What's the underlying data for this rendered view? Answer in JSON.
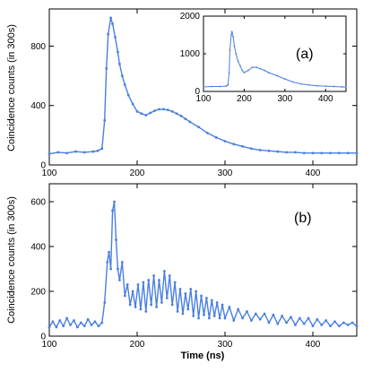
{
  "colors": {
    "series": "#4a7fe0",
    "axis": "#000000",
    "background": "#ffffff"
  },
  "xlabel": "Time (ns)",
  "chart_data": [
    {
      "type": "line",
      "panel_label": "(a)",
      "ylabel": "Coincidence counts (in 300s)",
      "xlim": [
        100,
        450
      ],
      "ylim": [
        0,
        1050
      ],
      "xticks": [
        100,
        200,
        300,
        400
      ],
      "yticks": [
        0,
        400,
        800
      ],
      "series": [
        {
          "x": [
            100,
            110,
            120,
            130,
            140,
            150,
            155,
            160,
            163,
            165,
            167,
            170,
            172,
            175,
            178,
            180,
            183,
            186,
            190,
            195,
            200,
            205,
            210,
            215,
            220,
            225,
            230,
            235,
            240,
            245,
            250,
            255,
            260,
            270,
            280,
            290,
            300,
            310,
            320,
            330,
            340,
            350,
            360,
            370,
            380,
            390,
            400,
            410,
            420,
            430,
            440,
            450
          ],
          "y": [
            75,
            85,
            80,
            90,
            85,
            90,
            95,
            110,
            300,
            650,
            880,
            990,
            950,
            860,
            760,
            680,
            600,
            540,
            470,
            410,
            360,
            345,
            335,
            350,
            365,
            375,
            375,
            370,
            360,
            345,
            330,
            310,
            290,
            255,
            215,
            185,
            160,
            140,
            125,
            110,
            100,
            95,
            90,
            85,
            85,
            80,
            80,
            80,
            80,
            80,
            80,
            80
          ]
        }
      ],
      "inset": {
        "type": "line",
        "xlim": [
          100,
          450
        ],
        "ylim": [
          0,
          2000
        ],
        "xticks": [
          100,
          200,
          300,
          400
        ],
        "yticks": [
          0,
          1000,
          2000
        ],
        "series": [
          {
            "x": [
              100,
              120,
              140,
              155,
              160,
              163,
              165,
              168,
              170,
              173,
              176,
              180,
              185,
              190,
              195,
              200,
              210,
              220,
              230,
              240,
              250,
              260,
              280,
              300,
              320,
              340,
              360,
              380,
              400,
              420,
              440,
              450
            ],
            "y": [
              120,
              130,
              130,
              140,
              170,
              500,
              1100,
              1500,
              1580,
              1450,
              1200,
              1000,
              800,
              680,
              560,
              500,
              560,
              640,
              640,
              600,
              560,
              500,
              420,
              330,
              250,
              200,
              170,
              150,
              140,
              130,
              120,
              120
            ]
          }
        ]
      }
    },
    {
      "type": "line",
      "panel_label": "(b)",
      "ylabel": "Coincidence counts (in 300s)",
      "xlim": [
        100,
        450
      ],
      "ylim": [
        0,
        680
      ],
      "xticks": [
        100,
        200,
        300,
        400
      ],
      "yticks": [
        0,
        200,
        400,
        600
      ],
      "series": [
        {
          "x": [
            100,
            104,
            108,
            112,
            116,
            120,
            124,
            128,
            132,
            136,
            140,
            144,
            148,
            152,
            156,
            160,
            163,
            166,
            168,
            170,
            172,
            174,
            176,
            178,
            180,
            183,
            186,
            189,
            192,
            195,
            198,
            201,
            204,
            207,
            210,
            213,
            216,
            219,
            222,
            225,
            228,
            231,
            234,
            237,
            240,
            243,
            246,
            249,
            252,
            255,
            258,
            261,
            264,
            267,
            270,
            273,
            276,
            279,
            282,
            285,
            288,
            291,
            294,
            297,
            300,
            305,
            310,
            315,
            320,
            325,
            330,
            335,
            340,
            345,
            350,
            355,
            360,
            365,
            370,
            375,
            380,
            385,
            390,
            395,
            400,
            405,
            410,
            415,
            420,
            425,
            430,
            435,
            440,
            445,
            450
          ],
          "y": [
            40,
            65,
            40,
            70,
            45,
            80,
            50,
            70,
            40,
            60,
            45,
            75,
            50,
            65,
            45,
            60,
            150,
            330,
            375,
            300,
            560,
            600,
            430,
            300,
            250,
            330,
            180,
            230,
            140,
            200,
            130,
            230,
            120,
            240,
            110,
            250,
            140,
            270,
            130,
            250,
            150,
            290,
            170,
            270,
            140,
            240,
            110,
            210,
            100,
            190,
            120,
            210,
            90,
            200,
            80,
            180,
            95,
            170,
            80,
            160,
            90,
            150,
            80,
            140,
            80,
            130,
            70,
            120,
            80,
            110,
            70,
            100,
            75,
            100,
            60,
            95,
            55,
            90,
            60,
            85,
            50,
            80,
            55,
            80,
            45,
            75,
            50,
            70,
            45,
            65,
            45,
            60,
            50,
            60,
            45
          ]
        }
      ]
    }
  ]
}
